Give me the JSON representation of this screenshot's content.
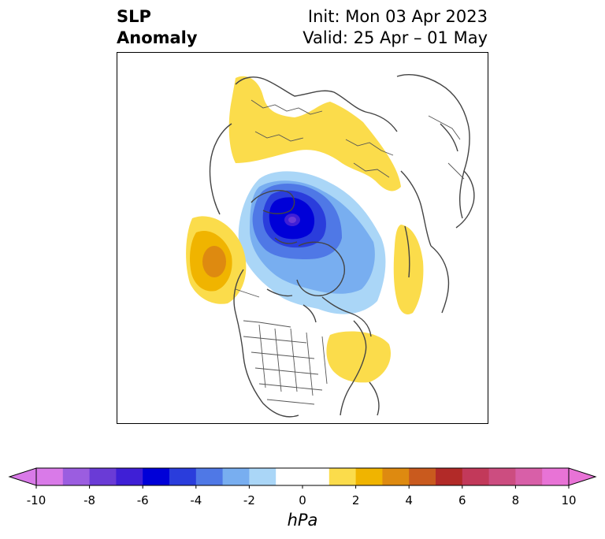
{
  "title": {
    "left_line1": "SLP",
    "left_line2": "Anomaly",
    "right_line1": "Init: Mon 03 Apr 2023",
    "right_line2": "Valid: 25 Apr – 01 May"
  },
  "map": {
    "projection": "north-polar-stereographic",
    "region": "Northern Hemisphere",
    "features": [
      {
        "name": "Arctic low",
        "type": "negative",
        "center": "Arctic Ocean north of Siberia",
        "min_hPa": -7
      },
      {
        "name": "Scandinavia–Russia high",
        "type": "positive",
        "max_hPa": 2
      },
      {
        "name": "Gulf of Alaska high",
        "type": "positive",
        "max_hPa": 4
      },
      {
        "name": "North Atlantic high",
        "type": "positive",
        "max_hPa": 2
      },
      {
        "name": "Western Russia high",
        "type": "positive",
        "max_hPa": 2
      }
    ]
  },
  "colorbar": {
    "unit": "hPa",
    "ticks": [
      "-10",
      "-8",
      "-6",
      "-4",
      "-2",
      "0",
      "2",
      "4",
      "6",
      "8",
      "10"
    ],
    "boundaries": [
      -10,
      -9,
      -8,
      -7,
      -6,
      -5,
      -4,
      -3,
      -2,
      -1,
      1,
      2,
      3,
      4,
      5,
      6,
      7,
      8,
      9,
      10
    ],
    "colors": [
      "#d97ae8",
      "#9b5de0",
      "#6a3bd6",
      "#3f1fd6",
      "#0000d8",
      "#2a3ddc",
      "#4f78e6",
      "#78aef0",
      "#aad6f7",
      "#ffffff",
      "#fbdc4b",
      "#f0b400",
      "#de8a10",
      "#c95a1e",
      "#b22a28",
      "#c2395a",
      "#cc4d80",
      "#d85fa8",
      "#e873d6"
    ],
    "extend_min_color": "#d97ae8",
    "extend_max_color": "#e873d6"
  }
}
